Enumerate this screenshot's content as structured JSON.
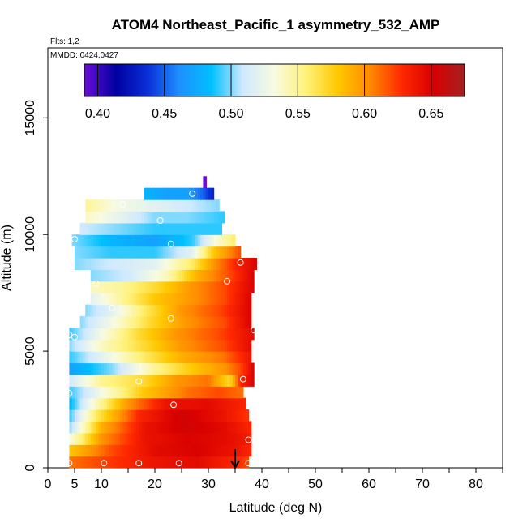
{
  "chart_data": {
    "type": "heatmap",
    "title": "ATOM4 Northeast_Pacific_1 asymmetry_532_AMP",
    "flights_note": "Flts: 1,2",
    "date_note": "MMDD: 0424,0427",
    "xlabel": "Latitude (deg N)",
    "ylabel": "Altitude (m)",
    "xlim": [
      0,
      85
    ],
    "ylim": [
      0,
      18000
    ],
    "x_ticks": [
      0,
      5,
      10,
      20,
      30,
      40,
      50,
      60,
      70,
      80
    ],
    "x_tick_labels": [
      "0",
      "5",
      "10",
      "20",
      "30",
      "40",
      "50",
      "60",
      "70",
      "80"
    ],
    "x_minor_ticks": [
      15,
      25,
      35,
      45,
      55,
      65,
      75,
      85
    ],
    "y_ticks": [
      0,
      5000,
      10000,
      15000
    ],
    "y_tick_labels": [
      "0",
      "5000",
      "10000",
      "15000"
    ],
    "colorbar": {
      "range": [
        0.39,
        0.675
      ],
      "ticks": [
        0.4,
        0.45,
        0.5,
        0.55,
        0.6,
        0.65
      ],
      "tick_labels": [
        "0.40",
        "0.45",
        "0.50",
        "0.55",
        "0.60",
        "0.65"
      ],
      "colors": [
        "#6a0dd8",
        "#0000a0",
        "#0a2fd8",
        "#1e90ff",
        "#00bfff",
        "#cfe9ff",
        "#f8fbe0",
        "#fff27a",
        "#ffc800",
        "#ff8c00",
        "#ff2a00",
        "#d80000",
        "#a52020"
      ]
    },
    "latitude_arrow": {
      "latitude": 35,
      "altitude": 800
    },
    "layers": [
      {
        "alt": [
          0,
          500
        ],
        "lat": [
          4,
          37.5
        ],
        "values": [
          [
            4,
            0.61
          ],
          [
            12,
            0.625
          ],
          [
            20,
            0.64
          ],
          [
            28,
            0.645
          ],
          [
            35,
            0.63
          ],
          [
            37.5,
            0.62
          ]
        ]
      },
      {
        "alt": [
          500,
          1000
        ],
        "lat": [
          4,
          38
        ],
        "values": [
          [
            4,
            0.58
          ],
          [
            12,
            0.62
          ],
          [
            20,
            0.645
          ],
          [
            28,
            0.65
          ],
          [
            35,
            0.64
          ],
          [
            38,
            0.63
          ]
        ]
      },
      {
        "alt": [
          1000,
          1500
        ],
        "lat": [
          4,
          38
        ],
        "values": [
          [
            4,
            0.53
          ],
          [
            10,
            0.6
          ],
          [
            18,
            0.64
          ],
          [
            26,
            0.65
          ],
          [
            33,
            0.645
          ],
          [
            38,
            0.635
          ]
        ]
      },
      {
        "alt": [
          1500,
          2000
        ],
        "lat": [
          4,
          38
        ],
        "values": [
          [
            4,
            0.5
          ],
          [
            10,
            0.59
          ],
          [
            18,
            0.64
          ],
          [
            26,
            0.655
          ],
          [
            33,
            0.645
          ],
          [
            38,
            0.63
          ]
        ]
      },
      {
        "alt": [
          2000,
          2500
        ],
        "lat": [
          4,
          37.5
        ],
        "values": [
          [
            4,
            0.49
          ],
          [
            9,
            0.56
          ],
          [
            17,
            0.63
          ],
          [
            25,
            0.655
          ],
          [
            33,
            0.64
          ],
          [
            37.5,
            0.625
          ]
        ]
      },
      {
        "alt": [
          2500,
          3000
        ],
        "lat": [
          4,
          37
        ],
        "values": [
          [
            4,
            0.48
          ],
          [
            8,
            0.53
          ],
          [
            15,
            0.6
          ],
          [
            22,
            0.64
          ],
          [
            30,
            0.645
          ],
          [
            37,
            0.63
          ]
        ]
      },
      {
        "alt": [
          3000,
          3500
        ],
        "lat": [
          4,
          36.5
        ],
        "values": [
          [
            4,
            0.49
          ],
          [
            10,
            0.53
          ],
          [
            18,
            0.58
          ],
          [
            26,
            0.61
          ],
          [
            32,
            0.62
          ],
          [
            36.5,
            0.61
          ]
        ]
      },
      {
        "alt": [
          3500,
          4000
        ],
        "lat": [
          4,
          38.5
        ],
        "values": [
          [
            4,
            0.51
          ],
          [
            10,
            0.55
          ],
          [
            18,
            0.57
          ],
          [
            24,
            0.6
          ],
          [
            30,
            0.61
          ],
          [
            34,
            0.57
          ],
          [
            36,
            0.63
          ],
          [
            38.5,
            0.65
          ]
        ]
      },
      {
        "alt": [
          4000,
          4500
        ],
        "lat": [
          4,
          38.5
        ],
        "values": [
          [
            4,
            0.47
          ],
          [
            12,
            0.5
          ],
          [
            20,
            0.55
          ],
          [
            27,
            0.58
          ],
          [
            33,
            0.6
          ],
          [
            36,
            0.62
          ],
          [
            38.5,
            0.65
          ]
        ]
      },
      {
        "alt": [
          4500,
          5000
        ],
        "lat": [
          4,
          38
        ],
        "values": [
          [
            4,
            0.49
          ],
          [
            10,
            0.52
          ],
          [
            18,
            0.56
          ],
          [
            25,
            0.59
          ],
          [
            33,
            0.61
          ],
          [
            38,
            0.64
          ]
        ]
      },
      {
        "alt": [
          5000,
          5500
        ],
        "lat": [
          4,
          38
        ],
        "values": [
          [
            4,
            0.5
          ],
          [
            10,
            0.54
          ],
          [
            18,
            0.57
          ],
          [
            25,
            0.6
          ],
          [
            33,
            0.62
          ],
          [
            38,
            0.645
          ]
        ]
      },
      {
        "alt": [
          5500,
          6000
        ],
        "lat": [
          4,
          38.5
        ],
        "values": [
          [
            4,
            0.49
          ],
          [
            10,
            0.53
          ],
          [
            17,
            0.57
          ],
          [
            24,
            0.6
          ],
          [
            32,
            0.62
          ],
          [
            38.5,
            0.645
          ]
        ]
      },
      {
        "alt": [
          6000,
          6500
        ],
        "lat": [
          6,
          38
        ],
        "values": [
          [
            6,
            0.5
          ],
          [
            12,
            0.53
          ],
          [
            19,
            0.57
          ],
          [
            26,
            0.6
          ],
          [
            33,
            0.62
          ],
          [
            38,
            0.65
          ]
        ]
      },
      {
        "alt": [
          6500,
          7000
        ],
        "lat": [
          7,
          38
        ],
        "values": [
          [
            7,
            0.5
          ],
          [
            12,
            0.52
          ],
          [
            18,
            0.56
          ],
          [
            25,
            0.6
          ],
          [
            32,
            0.62
          ],
          [
            38,
            0.65
          ]
        ]
      },
      {
        "alt": [
          7000,
          7500
        ],
        "lat": [
          8,
          38
        ],
        "values": [
          [
            8,
            0.52
          ],
          [
            14,
            0.55
          ],
          [
            20,
            0.58
          ],
          [
            27,
            0.6
          ],
          [
            33,
            0.62
          ],
          [
            38,
            0.65
          ]
        ]
      },
      {
        "alt": [
          7500,
          8000
        ],
        "lat": [
          8,
          38.5
        ],
        "values": [
          [
            8,
            0.54
          ],
          [
            14,
            0.55
          ],
          [
            20,
            0.57
          ],
          [
            27,
            0.6
          ],
          [
            33,
            0.62
          ],
          [
            38.5,
            0.65
          ]
        ]
      },
      {
        "alt": [
          8000,
          8500
        ],
        "lat": [
          8,
          38.5
        ],
        "values": [
          [
            8,
            0.5
          ],
          [
            15,
            0.51
          ],
          [
            22,
            0.54
          ],
          [
            28,
            0.59
          ],
          [
            34,
            0.62
          ],
          [
            38.5,
            0.65
          ]
        ]
      },
      {
        "alt": [
          8500,
          9000
        ],
        "lat": [
          5,
          39
        ],
        "values": [
          [
            5,
            0.5
          ],
          [
            12,
            0.51
          ],
          [
            20,
            0.52
          ],
          [
            27,
            0.56
          ],
          [
            31,
            0.6
          ],
          [
            35,
            0.63
          ],
          [
            39,
            0.65
          ]
        ]
      },
      {
        "alt": [
          9000,
          9500
        ],
        "lat": [
          5,
          36
        ],
        "values": [
          [
            5,
            0.5
          ],
          [
            12,
            0.49
          ],
          [
            20,
            0.49
          ],
          [
            27,
            0.52
          ],
          [
            31,
            0.58
          ],
          [
            36,
            0.62
          ]
        ]
      },
      {
        "alt": [
          9500,
          10000
        ],
        "lat": [
          4.5,
          35
        ],
        "values": [
          [
            4.5,
            0.5
          ],
          [
            12,
            0.48
          ],
          [
            20,
            0.47
          ],
          [
            27,
            0.49
          ],
          [
            31,
            0.53
          ],
          [
            35,
            0.56
          ]
        ]
      },
      {
        "alt": [
          10000,
          10500
        ],
        "lat": [
          6,
          32.5
        ],
        "values": [
          [
            6,
            0.51
          ],
          [
            13,
            0.5
          ],
          [
            20,
            0.49
          ],
          [
            26,
            0.49
          ],
          [
            32.5,
            0.49
          ]
        ]
      },
      {
        "alt": [
          10500,
          11000
        ],
        "lat": [
          7,
          33
        ],
        "values": [
          [
            7,
            0.54
          ],
          [
            14,
            0.52
          ],
          [
            20,
            0.5
          ],
          [
            26,
            0.5
          ],
          [
            33,
            0.49
          ]
        ]
      },
      {
        "alt": [
          11000,
          11500
        ],
        "lat": [
          7,
          32
        ],
        "values": [
          [
            7,
            0.55
          ],
          [
            13,
            0.53
          ],
          [
            20,
            0.52
          ],
          [
            26,
            0.51
          ],
          [
            32,
            0.5
          ]
        ]
      },
      {
        "alt": [
          11500,
          12000
        ],
        "lat": [
          18,
          31
        ],
        "values": [
          [
            18,
            0.48
          ],
          [
            22,
            0.47
          ],
          [
            26,
            0.47
          ],
          [
            29,
            0.45
          ],
          [
            31,
            0.43
          ]
        ]
      },
      {
        "alt": [
          12000,
          12500
        ],
        "lat": [
          29,
          29.6
        ],
        "values": [
          [
            29,
            0.39
          ],
          [
            29.6,
            0.39
          ]
        ]
      }
    ],
    "sample_points": [
      [
        4,
        200
      ],
      [
        10.5,
        200
      ],
      [
        17,
        200
      ],
      [
        24.5,
        200
      ],
      [
        37.5,
        200
      ],
      [
        37.5,
        1200
      ],
      [
        23.5,
        2700
      ],
      [
        17,
        3700
      ],
      [
        36.5,
        3800
      ],
      [
        4,
        3200
      ],
      [
        4,
        5700
      ],
      [
        5,
        5600
      ],
      [
        23,
        6400
      ],
      [
        12,
        6850
      ],
      [
        38.5,
        5900
      ],
      [
        33.5,
        8000
      ],
      [
        36,
        8800
      ],
      [
        9,
        7900
      ],
      [
        5,
        9800
      ],
      [
        23,
        9600
      ],
      [
        21,
        10600
      ],
      [
        14,
        11300
      ],
      [
        27,
        11750
      ]
    ]
  }
}
